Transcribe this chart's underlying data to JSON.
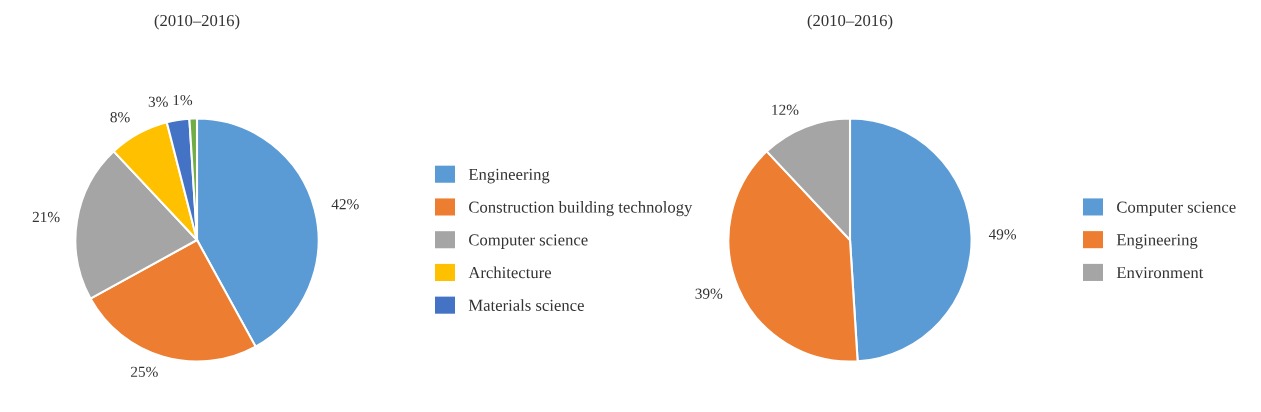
{
  "chart_data": [
    {
      "type": "pie",
      "title": "(2010–2016)",
      "categories": [
        "Engineering",
        "Construction building technology",
        "Computer science",
        "Architecture",
        "Materials science",
        null
      ],
      "values": [
        42,
        25,
        21,
        8,
        3,
        1
      ],
      "value_labels": [
        "42%",
        "25%",
        "21%",
        "8%",
        "3%",
        "1%"
      ],
      "colors": [
        "#5b9bd5",
        "#ed7d31",
        "#a5a5a5",
        "#ffc000",
        "#4472c4",
        "#70ad47"
      ],
      "legend": "right"
    },
    {
      "type": "pie",
      "title": "(2010–2016)",
      "categories": [
        "Computer science",
        "Engineering",
        "Environment"
      ],
      "values": [
        49,
        39,
        12
      ],
      "value_labels": [
        "49%",
        "39%",
        "12%"
      ],
      "colors": [
        "#5b9bd5",
        "#ed7d31",
        "#a5a5a5"
      ],
      "legend": "right"
    }
  ]
}
